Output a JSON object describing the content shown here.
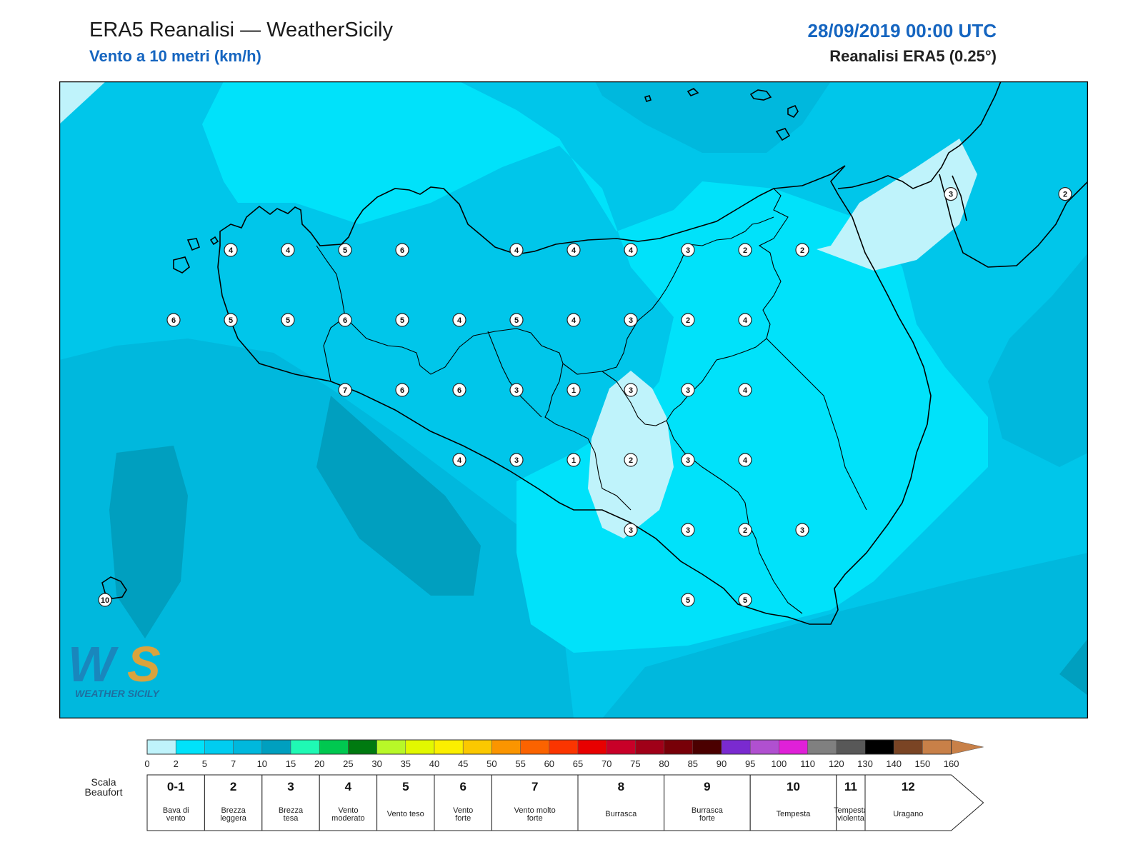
{
  "header": {
    "title": "ERA5 Reanalisi — WeatherSicily",
    "subtitle": "Vento a 10 metri (km/h)",
    "datetime": "28/09/2019 00:00 UTC",
    "model": "Reanalisi ERA5 (0.25°)"
  },
  "logo": {
    "text": "WEATHER SICILY"
  },
  "stations": [
    {
      "v": "3",
      "lon": 15.65,
      "lat": 38.2
    },
    {
      "v": "2",
      "lon": 16.15,
      "lat": 38.2
    },
    {
      "v": "4",
      "lon": 12.5,
      "lat": 38.0
    },
    {
      "v": "4",
      "lon": 12.75,
      "lat": 38.0
    },
    {
      "v": "5",
      "lon": 13.0,
      "lat": 38.0
    },
    {
      "v": "6",
      "lon": 13.25,
      "lat": 38.0
    },
    {
      "v": "4",
      "lon": 13.75,
      "lat": 38.0
    },
    {
      "v": "4",
      "lon": 14.0,
      "lat": 38.0
    },
    {
      "v": "4",
      "lon": 14.25,
      "lat": 38.0
    },
    {
      "v": "3",
      "lon": 14.5,
      "lat": 38.0
    },
    {
      "v": "2",
      "lon": 14.75,
      "lat": 38.0
    },
    {
      "v": "2",
      "lon": 15.0,
      "lat": 38.0
    },
    {
      "v": "6",
      "lon": 12.25,
      "lat": 37.75
    },
    {
      "v": "5",
      "lon": 12.5,
      "lat": 37.75
    },
    {
      "v": "5",
      "lon": 12.75,
      "lat": 37.75
    },
    {
      "v": "6",
      "lon": 13.0,
      "lat": 37.75
    },
    {
      "v": "5",
      "lon": 13.25,
      "lat": 37.75
    },
    {
      "v": "4",
      "lon": 13.5,
      "lat": 37.75
    },
    {
      "v": "5",
      "lon": 13.75,
      "lat": 37.75
    },
    {
      "v": "4",
      "lon": 14.0,
      "lat": 37.75
    },
    {
      "v": "3",
      "lon": 14.25,
      "lat": 37.75
    },
    {
      "v": "2",
      "lon": 14.5,
      "lat": 37.75
    },
    {
      "v": "4",
      "lon": 14.75,
      "lat": 37.75
    },
    {
      "v": "7",
      "lon": 13.0,
      "lat": 37.5
    },
    {
      "v": "6",
      "lon": 13.25,
      "lat": 37.5
    },
    {
      "v": "6",
      "lon": 13.5,
      "lat": 37.5
    },
    {
      "v": "3",
      "lon": 13.75,
      "lat": 37.5
    },
    {
      "v": "1",
      "lon": 14.0,
      "lat": 37.5
    },
    {
      "v": "3",
      "lon": 14.25,
      "lat": 37.5
    },
    {
      "v": "3",
      "lon": 14.5,
      "lat": 37.5
    },
    {
      "v": "4",
      "lon": 14.75,
      "lat": 37.5
    },
    {
      "v": "4",
      "lon": 13.5,
      "lat": 37.25
    },
    {
      "v": "3",
      "lon": 13.75,
      "lat": 37.25
    },
    {
      "v": "1",
      "lon": 14.0,
      "lat": 37.25
    },
    {
      "v": "2",
      "lon": 14.25,
      "lat": 37.25
    },
    {
      "v": "3",
      "lon": 14.5,
      "lat": 37.25
    },
    {
      "v": "4",
      "lon": 14.75,
      "lat": 37.25
    },
    {
      "v": "3",
      "lon": 14.25,
      "lat": 37.0
    },
    {
      "v": "3",
      "lon": 14.5,
      "lat": 37.0
    },
    {
      "v": "2",
      "lon": 14.75,
      "lat": 37.0
    },
    {
      "v": "3",
      "lon": 15.0,
      "lat": 37.0
    },
    {
      "v": "5",
      "lon": 14.5,
      "lat": 36.75
    },
    {
      "v": "5",
      "lon": 14.75,
      "lat": 36.75
    },
    {
      "v": "10",
      "lon": 11.95,
      "lat": 36.75
    }
  ],
  "colorbar": {
    "ticks": [
      "0",
      "2",
      "5",
      "7",
      "10",
      "15",
      "20",
      "25",
      "30",
      "35",
      "40",
      "45",
      "50",
      "55",
      "60",
      "65",
      "70",
      "75",
      "80",
      "85",
      "90",
      "95",
      "100",
      "110",
      "120",
      "130",
      "140",
      "150",
      "160"
    ],
    "colors": [
      "#bff3fb",
      "#00e2fa",
      "#00cdf0",
      "#00b8dd",
      "#009fbf",
      "#1ff9b4",
      "#00c850",
      "#007a10",
      "#b8f828",
      "#e2f800",
      "#fbef00",
      "#fbc800",
      "#fb9500",
      "#fb6300",
      "#fb3500",
      "#e80000",
      "#c80028",
      "#a00018",
      "#780008",
      "#4b0000",
      "#7a2ad0",
      "#b050d0",
      "#e020d8",
      "#808080",
      "#585858",
      "#000000",
      "#7a4424",
      "#c88048"
    ],
    "beaufort_label": [
      "Scala",
      "Beaufort"
    ],
    "beaufort": [
      {
        "num": "0-1",
        "desc": [
          "Bava di",
          "vento"
        ]
      },
      {
        "num": "2",
        "desc": [
          "Brezza",
          "leggera"
        ]
      },
      {
        "num": "3",
        "desc": [
          "Brezza",
          "tesa"
        ]
      },
      {
        "num": "4",
        "desc": [
          "Vento",
          "moderato"
        ]
      },
      {
        "num": "5",
        "desc": [
          "Vento teso"
        ]
      },
      {
        "num": "6",
        "desc": [
          "Vento",
          "forte"
        ]
      },
      {
        "num": "7",
        "desc": [
          "Vento molto",
          "forte"
        ]
      },
      {
        "num": "8",
        "desc": [
          "Burrasca"
        ]
      },
      {
        "num": "9",
        "desc": [
          "Burrasca",
          "forte"
        ]
      },
      {
        "num": "10",
        "desc": [
          "Tempesta"
        ]
      },
      {
        "num": "11",
        "desc": [
          "Tempesta",
          "violenta"
        ]
      },
      {
        "num": "12",
        "desc": [
          "Uragano"
        ]
      }
    ]
  }
}
